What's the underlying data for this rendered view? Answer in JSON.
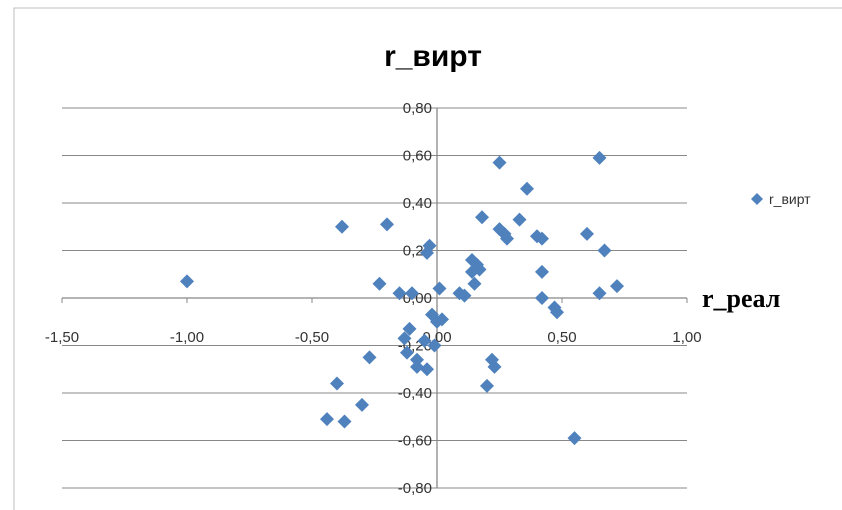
{
  "chart_data": {
    "type": "scatter",
    "title": "r_вирт",
    "xlabel": "r_реал",
    "ylabel": "",
    "xlim": [
      -1.5,
      1.0
    ],
    "ylim": [
      -0.8,
      0.8
    ],
    "x_ticks": [
      "-1,50",
      "-1,00",
      "-0,50",
      "0,00",
      "0,50",
      "1,00"
    ],
    "y_ticks": [
      "-0,80",
      "-0,60",
      "-0,40",
      "-0,20",
      "0,00",
      "0,20",
      "0,40",
      "0,60",
      "0,80"
    ],
    "grid": true,
    "legend_position": "right",
    "colors": {
      "marker": "#4F81BD",
      "grid": "#888888",
      "frame": "#BFBFBF"
    },
    "series": [
      {
        "name": "r_вирт",
        "points": [
          [
            -1.0,
            0.07
          ],
          [
            -0.44,
            -0.51
          ],
          [
            -0.4,
            -0.36
          ],
          [
            -0.38,
            0.3
          ],
          [
            -0.37,
            -0.52
          ],
          [
            -0.3,
            -0.45
          ],
          [
            -0.27,
            -0.25
          ],
          [
            -0.23,
            0.06
          ],
          [
            -0.2,
            0.31
          ],
          [
            -0.15,
            0.02
          ],
          [
            -0.13,
            -0.17
          ],
          [
            -0.12,
            -0.23
          ],
          [
            -0.11,
            -0.13
          ],
          [
            -0.1,
            0.02
          ],
          [
            -0.08,
            -0.26
          ],
          [
            -0.08,
            -0.29
          ],
          [
            -0.05,
            -0.18
          ],
          [
            -0.04,
            -0.3
          ],
          [
            -0.04,
            0.19
          ],
          [
            -0.03,
            0.22
          ],
          [
            -0.02,
            -0.07
          ],
          [
            -0.01,
            -0.2
          ],
          [
            0.0,
            -0.1
          ],
          [
            0.01,
            0.04
          ],
          [
            0.02,
            -0.09
          ],
          [
            0.09,
            0.02
          ],
          [
            0.11,
            0.01
          ],
          [
            0.14,
            0.16
          ],
          [
            0.14,
            0.11
          ],
          [
            0.15,
            0.06
          ],
          [
            0.16,
            0.14
          ],
          [
            0.17,
            0.12
          ],
          [
            0.18,
            0.34
          ],
          [
            0.2,
            -0.37
          ],
          [
            0.22,
            -0.26
          ],
          [
            0.23,
            -0.29
          ],
          [
            0.25,
            0.29
          ],
          [
            0.25,
            0.57
          ],
          [
            0.27,
            0.27
          ],
          [
            0.28,
            0.25
          ],
          [
            0.33,
            0.33
          ],
          [
            0.36,
            0.46
          ],
          [
            0.4,
            0.26
          ],
          [
            0.42,
            0.25
          ],
          [
            0.42,
            0.0
          ],
          [
            0.42,
            0.11
          ],
          [
            0.47,
            -0.04
          ],
          [
            0.48,
            -0.06
          ],
          [
            0.55,
            -0.59
          ],
          [
            0.6,
            0.27
          ],
          [
            0.65,
            0.02
          ],
          [
            0.65,
            0.59
          ],
          [
            0.67,
            0.2
          ],
          [
            0.72,
            0.05
          ]
        ]
      }
    ]
  }
}
